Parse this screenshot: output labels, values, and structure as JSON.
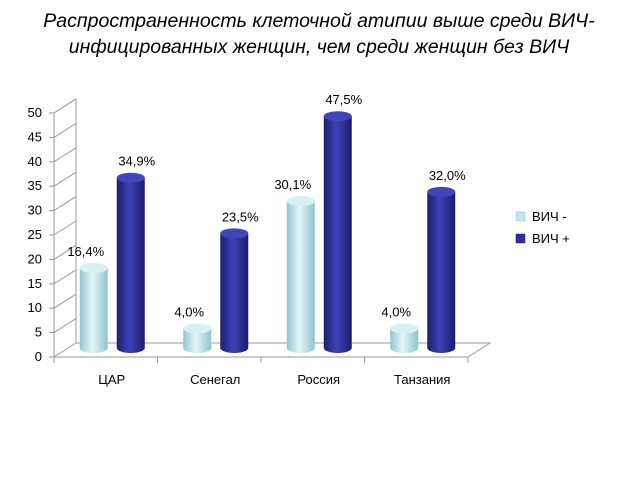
{
  "chart_data": {
    "type": "bar",
    "title": "Распространенность клеточной атипии выше среди ВИЧ-инфицированных женщин, чем среди женщин без ВИЧ",
    "categories": [
      "ЦАР",
      "Сенегал",
      "Россия",
      "Танзания"
    ],
    "series": [
      {
        "name": "ВИЧ -",
        "values": [
          16.4,
          4.0,
          30.1,
          4.0
        ],
        "labels": [
          "16,4%",
          "4,0%",
          "30,1%",
          "4,0%"
        ],
        "color": "#bfe6ea"
      },
      {
        "name": "ВИЧ +",
        "values": [
          34.9,
          23.5,
          47.5,
          32.0
        ],
        "labels": [
          "34,9%",
          "23,5%",
          "47,5%",
          "32,0%"
        ],
        "color": "#2b2f96"
      }
    ],
    "yticks": [
      "0",
      "5",
      "10",
      "15",
      "20",
      "25",
      "30",
      "35",
      "40",
      "45",
      "50"
    ],
    "ylim": [
      0,
      50
    ],
    "grid": false,
    "legend": "right",
    "style": "3d-cylinder"
  }
}
